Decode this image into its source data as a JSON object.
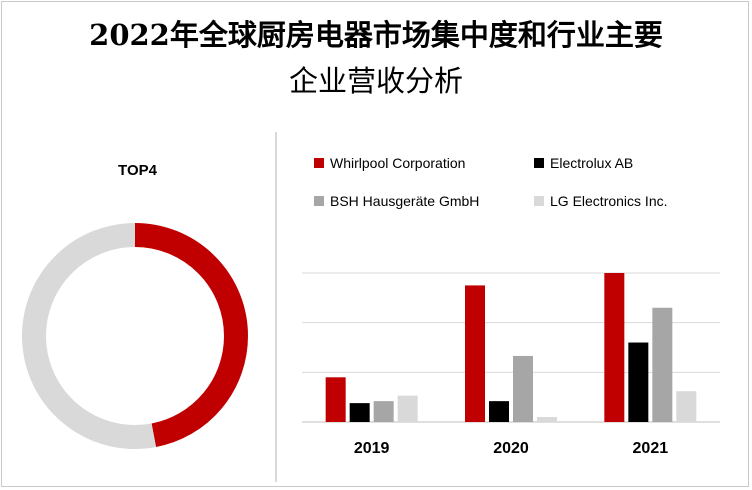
{
  "title_line1": "2022年全球厨房电器市场集中度和行业主要",
  "title_line2": "企业营收分析",
  "chart_data": [
    {
      "type": "pie",
      "title": "TOP4",
      "donut": true,
      "slices": [
        {
          "value": 47,
          "color": "#c00000"
        },
        {
          "value": 53,
          "color": "#d9d9d9"
        }
      ]
    },
    {
      "type": "bar",
      "categories": [
        "2019",
        "2020",
        "2021"
      ],
      "series": [
        {
          "name": "Whirlpool Corporation",
          "color": "#c00000",
          "values": [
            9,
            27.5,
            30
          ]
        },
        {
          "name": "Electrolux AB",
          "color": "#000000",
          "values": [
            3.8,
            4.2,
            16
          ]
        },
        {
          "name": "BSH Hausgeräte GmbH",
          "color": "#a6a6a6",
          "values": [
            4.2,
            13.3,
            23
          ]
        },
        {
          "name": "LG Electronics Inc.",
          "color": "#d9d9d9",
          "values": [
            5.3,
            1,
            6.2
          ]
        }
      ],
      "ylim": [
        0,
        30
      ],
      "grid": true,
      "legend": "top"
    }
  ]
}
